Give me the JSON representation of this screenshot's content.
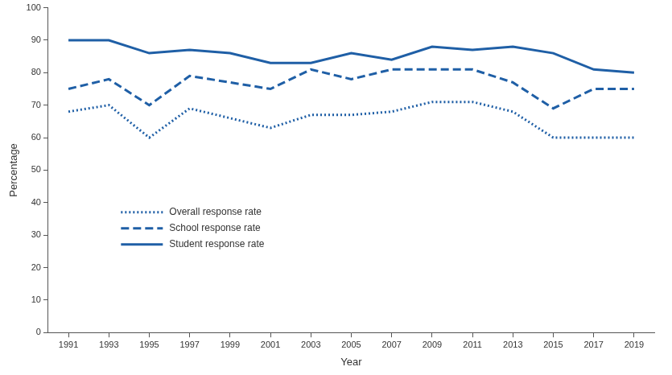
{
  "chart_data": {
    "type": "line",
    "x_label": "Year",
    "y_label": "Percentage",
    "categories": [
      "1991",
      "1993",
      "1995",
      "1997",
      "1999",
      "2001",
      "2003",
      "2005",
      "2007",
      "2009",
      "2011",
      "2013",
      "2015",
      "2017",
      "2019"
    ],
    "series": [
      {
        "name": "Overall response rate",
        "color": "#1f5fa6",
        "line_style": "dotted",
        "values": [
          68,
          70,
          60,
          69,
          66,
          63,
          67,
          67,
          68,
          71,
          71,
          68,
          60,
          60,
          60
        ]
      },
      {
        "name": "School response rate",
        "color": "#1f5fa6",
        "line_style": "dashed",
        "values": [
          75,
          78,
          70,
          79,
          77,
          75,
          81,
          78,
          81,
          81,
          81,
          77,
          69,
          75,
          75
        ]
      },
      {
        "name": "Student response rate",
        "color": "#1f5fa6",
        "line_style": "solid",
        "values": [
          90,
          90,
          86,
          87,
          86,
          83,
          83,
          86,
          84,
          88,
          87,
          88,
          86,
          81,
          80
        ]
      }
    ],
    "ylim": [
      0,
      100
    ],
    "yticks": [
      0,
      10,
      20,
      30,
      40,
      50,
      60,
      70,
      80,
      90,
      100
    ],
    "grid": false,
    "legend": "left"
  }
}
